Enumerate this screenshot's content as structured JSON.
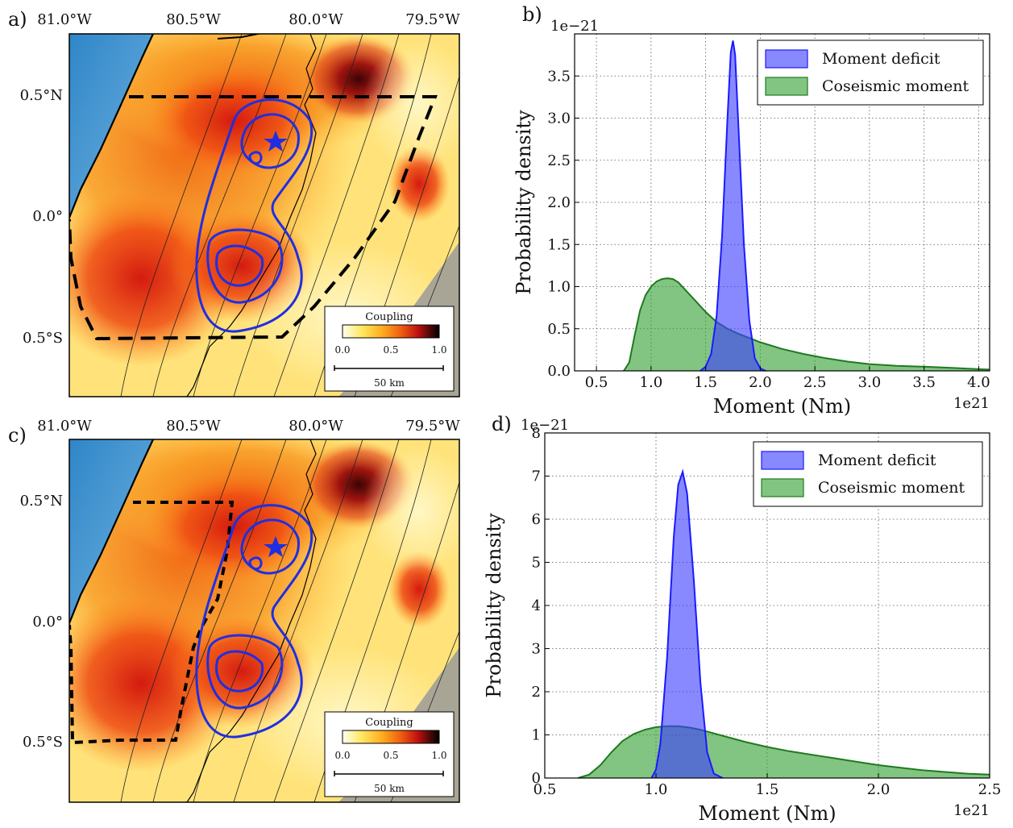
{
  "panels": {
    "a": {
      "label": "a)"
    },
    "b": {
      "label": "b)"
    },
    "c": {
      "label": "c)"
    },
    "d": {
      "label": "d)"
    }
  },
  "maps": {
    "lon_ticks": [
      "81.0°W",
      "80.5°W",
      "80.0°W",
      "79.5°W"
    ],
    "lat_ticks": [
      "0.5°N",
      "0.0°",
      "0.5°S"
    ],
    "colorbar": {
      "title": "Coupling",
      "ticks": [
        "0.0",
        "0.5",
        "1.0"
      ],
      "colors": [
        "#fffef0",
        "#ffe860",
        "#ffb020",
        "#f06010",
        "#c01010",
        "#500808",
        "#000000"
      ]
    },
    "scalebar": "50 km",
    "colors": {
      "ocean": "#4b9ad4",
      "contour": "#1f2fe0",
      "dashed": "#000000",
      "background": "#fff3b0"
    }
  },
  "chart_data": [
    {
      "panel": "b",
      "type": "area",
      "xlabel": "Moment (Nm)",
      "ylabel": "Probability density",
      "x_scale_label": "1e21",
      "y_scale_label": "1e−21",
      "xlim": [
        0.3,
        4.1
      ],
      "ylim": [
        0,
        4.0
      ],
      "xticks": [
        "0.5",
        "1.0",
        "1.5",
        "2.0",
        "2.5",
        "3.0",
        "3.5",
        "4.0"
      ],
      "yticks": [
        "0.0",
        "0.5",
        "1.0",
        "1.5",
        "2.0",
        "2.5",
        "3.0",
        "3.5"
      ],
      "legend": "top-right",
      "grid": true,
      "series": [
        {
          "name": "Moment deficit",
          "color": "#3b3bff",
          "x": [
            1.45,
            1.5,
            1.55,
            1.6,
            1.65,
            1.7,
            1.73,
            1.75,
            1.77,
            1.8,
            1.85,
            1.9,
            1.95,
            2.0,
            2.05
          ],
          "y": [
            0.0,
            0.05,
            0.2,
            0.65,
            1.6,
            3.0,
            3.78,
            3.92,
            3.75,
            2.9,
            1.5,
            0.6,
            0.15,
            0.03,
            0.0
          ]
        },
        {
          "name": "Coseismic moment",
          "color": "#2e9e2e",
          "x": [
            0.75,
            0.8,
            0.85,
            0.9,
            0.95,
            1.0,
            1.05,
            1.1,
            1.15,
            1.2,
            1.25,
            1.3,
            1.4,
            1.5,
            1.6,
            1.7,
            1.8,
            1.9,
            2.0,
            2.2,
            2.4,
            2.6,
            2.8,
            3.0,
            3.25,
            3.5,
            3.75,
            4.0,
            4.1
          ],
          "y": [
            0.0,
            0.1,
            0.42,
            0.72,
            0.9,
            1.0,
            1.06,
            1.09,
            1.1,
            1.09,
            1.05,
            0.98,
            0.84,
            0.7,
            0.58,
            0.5,
            0.44,
            0.39,
            0.34,
            0.26,
            0.2,
            0.15,
            0.11,
            0.08,
            0.06,
            0.05,
            0.035,
            0.02,
            0.015
          ]
        }
      ]
    },
    {
      "panel": "d",
      "type": "area",
      "xlabel": "Moment (Nm)",
      "ylabel": "Probability density",
      "x_scale_label": "1e21",
      "y_scale_label": "1e−21",
      "xlim": [
        0.5,
        2.5
      ],
      "ylim": [
        0,
        8
      ],
      "xticks": [
        "0.5",
        "1.0",
        "1.5",
        "2.0",
        "2.5"
      ],
      "yticks": [
        "0",
        "1",
        "2",
        "3",
        "4",
        "5",
        "6",
        "7",
        "8"
      ],
      "legend": "top-right",
      "grid": true,
      "series": [
        {
          "name": "Moment deficit",
          "color": "#3b3bff",
          "x": [
            0.98,
            1.0,
            1.02,
            1.05,
            1.08,
            1.1,
            1.12,
            1.14,
            1.17,
            1.2,
            1.23,
            1.26,
            1.3
          ],
          "y": [
            0.0,
            0.2,
            0.8,
            2.8,
            5.6,
            6.8,
            7.1,
            6.6,
            4.6,
            2.2,
            0.6,
            0.1,
            0.0
          ]
        },
        {
          "name": "Coseismic moment",
          "color": "#2e9e2e",
          "x": [
            0.65,
            0.7,
            0.75,
            0.8,
            0.85,
            0.9,
            0.95,
            1.0,
            1.05,
            1.1,
            1.15,
            1.2,
            1.3,
            1.4,
            1.5,
            1.6,
            1.7,
            1.8,
            1.9,
            2.0,
            2.1,
            2.2,
            2.3,
            2.4,
            2.5
          ],
          "y": [
            0.0,
            0.08,
            0.3,
            0.6,
            0.86,
            1.02,
            1.12,
            1.18,
            1.2,
            1.2,
            1.17,
            1.12,
            0.98,
            0.84,
            0.72,
            0.62,
            0.54,
            0.46,
            0.38,
            0.3,
            0.24,
            0.18,
            0.14,
            0.1,
            0.08
          ]
        }
      ]
    }
  ]
}
